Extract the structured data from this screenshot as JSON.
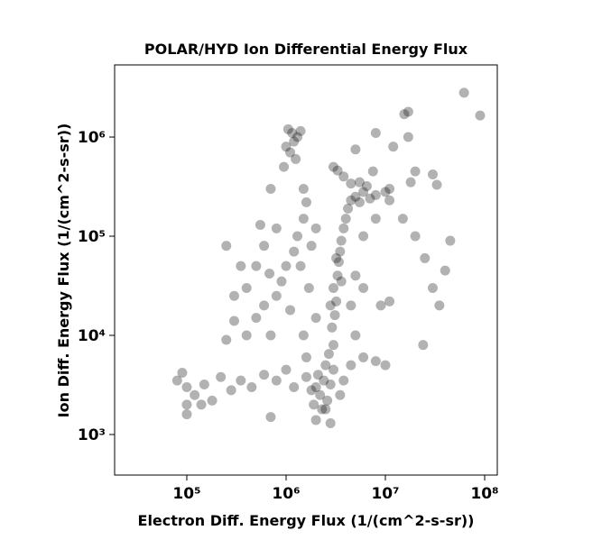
{
  "chart_data": {
    "type": "scatter",
    "title": "POLAR/HYD  Ion Differential Energy Flux",
    "x_label": "Electron Diff. Energy Flux (1/(cm^2-s-sr))",
    "y_label": "Ion Diff. Energy Flux (1/(cm^2-s-sr))",
    "log_x": true,
    "log_y": true,
    "grid": false,
    "xlim": [
      18750,
      134000000
    ],
    "ylim": [
      390,
      5340000
    ],
    "xticks": [
      {
        "value": 100000,
        "label": "10⁵"
      },
      {
        "value": 1000000,
        "label": "10⁶"
      },
      {
        "value": 10000000,
        "label": "10⁷"
      },
      {
        "value": 100000000,
        "label": "10⁸"
      }
    ],
    "yticks": [
      {
        "value": 1000,
        "label": "10³"
      },
      {
        "value": 10000,
        "label": "10⁴"
      },
      {
        "value": 100000,
        "label": "10⁵"
      },
      {
        "value": 1000000,
        "label": "10⁶"
      }
    ],
    "series": [
      {
        "color": "#000000",
        "x": [
          2000000.0,
          2200000.0,
          2400000.0,
          1800000.0,
          2600000.0,
          2100000.0,
          2800000.0,
          1600000.0,
          2300000.0,
          3000000.0,
          1900000.0,
          2500000.0,
          2700000.0,
          3000000.0,
          2900000.0,
          3100000.0,
          3200000.0,
          3000000.0,
          3300000.0,
          3400000.0,
          3500000.0,
          3600000.0,
          3800000.0,
          4000000.0,
          4200000.0,
          3200000.0,
          2800000.0,
          3600000.0,
          4500000.0,
          5000000.0,
          5500000.0,
          6000000.0,
          7000000.0,
          8000000.0,
          10000000.0,
          11000000.0,
          3000000.0,
          3300000.0,
          3800000.0,
          4500000.0,
          5500000.0,
          6500000.0,
          11000000.0,
          7500000.0,
          1050000.0,
          1150000.0,
          1200000.0,
          1000000.0,
          1300000.0,
          1100000.0,
          1250000.0,
          950000.0,
          1400000.0,
          80000.0,
          100000.0,
          120000.0,
          150000.0,
          180000.0,
          220000.0,
          280000.0,
          350000.0,
          450000.0,
          600000.0,
          800000.0,
          1000000.0,
          1200000.0,
          100000.0,
          100000.0,
          700000.0,
          140000.0,
          90000.0,
          400000.0,
          500000.0,
          600000.0,
          700000.0,
          800000.0,
          900000.0,
          1000000.0,
          1200000.0,
          1300000.0,
          1500000.0,
          1600000.0,
          1400000.0,
          1800000.0,
          2000000.0,
          1700000.0,
          1100000.0,
          500000.0,
          400000.0,
          350000.0,
          300000.0,
          600000.0,
          800000.0,
          250000.0,
          550000.0,
          250000.0,
          300000.0,
          1600000.0,
          1500000.0,
          2000000.0,
          5000000.0,
          6000000.0,
          8000000.0,
          10000000.0,
          4500000.0,
          5000000.0,
          6000000.0,
          9000000.0,
          11000000.0,
          6000000.0,
          8000000.0,
          15000000.0,
          20000000.0,
          25000000.0,
          30000000.0,
          35000000.0,
          24000000.0,
          40000000.0,
          45000000.0,
          62000000.0,
          90000000.0,
          17000000.0,
          15500000.0,
          17000000.0,
          8000000.0,
          5000000.0,
          12000000.0,
          20000000.0,
          30000000.0,
          33000000.0,
          18000000.0,
          700000.0,
          1500000.0,
          2500000.0,
          2800000.0,
          2000000.0,
          3500000.0,
          3800000.0,
          4500000.0,
          680000.0
        ],
        "values": [
          3000.0,
          2500.0,
          3500.0,
          2800.0,
          2200.0,
          4000.0,
          3200.0,
          3800.0,
          1800.0,
          4500.0,
          2000.0,
          5000.0,
          6500.0,
          8000.0,
          12000.0,
          16000.0,
          22000.0,
          30000.0,
          40000.0,
          55000.0,
          70000.0,
          90000.0,
          120000.0,
          150000.0,
          190000.0,
          60000.0,
          20000.0,
          35000.0,
          230000.0,
          250000.0,
          220000.0,
          280000.0,
          240000.0,
          260000.0,
          280000.0,
          230000.0,
          500000.0,
          460000.0,
          400000.0,
          340000.0,
          350000.0,
          320000.0,
          300000.0,
          450000.0,
          1200000.0,
          1100000.0,
          900000.0,
          800000.0,
          1000000.0,
          700000.0,
          600000.0,
          500000.0,
          1150000.0,
          3500.0,
          3000.0,
          2500.0,
          3200.0,
          2200.0,
          3800.0,
          2800.0,
          3500.0,
          3000.0,
          4000.0,
          3500.0,
          4500.0,
          3000.0,
          2000.0,
          1600.0,
          1500.0,
          2000.0,
          4200.0,
          10000.0,
          15000.0,
          20000.0,
          10000.0,
          25000.0,
          35000.0,
          50000.0,
          70000.0,
          100000.0,
          150000.0,
          220000.0,
          50000.0,
          80000.0,
          120000.0,
          30000.0,
          18000.0,
          50000.0,
          30000.0,
          50000.0,
          25000.0,
          80000.0,
          120000.0,
          80000.0,
          130000.0,
          9000.0,
          14000.0,
          6000.0,
          10000.0,
          15000.0,
          10000.0,
          6000.0,
          5500.0,
          5000.0,
          20000.0,
          40000.0,
          30000.0,
          20000.0,
          22000.0,
          100000.0,
          150000.0,
          150000.0,
          100000.0,
          60000.0,
          30000.0,
          20000.0,
          8000.0,
          45000.0,
          90000.0,
          2800000.0,
          1650000.0,
          1800000.0,
          1700000.0,
          1000000.0,
          1100000.0,
          750000.0,
          800000.0,
          450000.0,
          420000.0,
          330000.0,
          350000.0,
          300000.0,
          300000.0,
          1800.0,
          1300.0,
          1400.0,
          2500.0,
          3500.0,
          5000.0,
          42000.0
        ]
      }
    ]
  }
}
